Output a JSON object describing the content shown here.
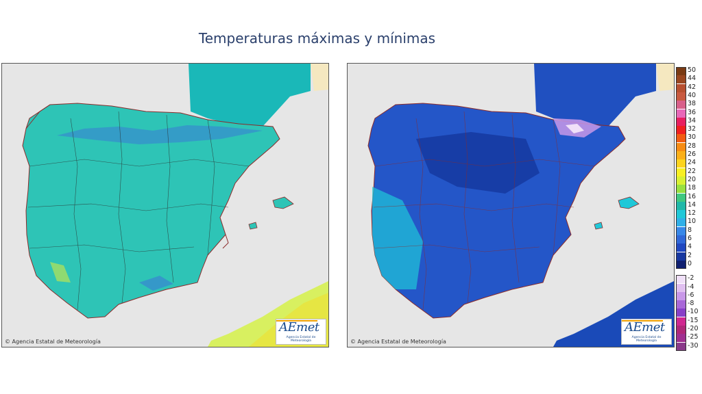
{
  "title": "Temperaturas máximas y mínimas",
  "panels": {
    "max": {
      "copyright": "© Agencia Estatal de Meteorología",
      "logo_text": "AEmet",
      "logo_subtext": "Agencia Estatal de Meteorología",
      "fill_color": "#2ec4b6",
      "hotspot_color": "#3a7bd5"
    },
    "min": {
      "copyright": "© Agencia Estatal de Meteorología",
      "logo_text": "AEmet",
      "logo_subtext": "Agencia Estatal de Meteorología",
      "fill_color": "#2456c8",
      "hotspot_color": "#0c2a8a"
    }
  },
  "colors": {
    "sea": "#e6e6e6",
    "france": "#1ab8b8",
    "france_min": "#2050c0",
    "africa": "#d8f060",
    "africa_min": "#1a4ab8",
    "borders": "#8b2a2a",
    "title": "#2a3f6b"
  },
  "legend": {
    "upper": [
      {
        "label": "50",
        "color": "#7a3b14"
      },
      {
        "label": "44",
        "color": "#9a4720"
      },
      {
        "label": "42",
        "color": "#b85030"
      },
      {
        "label": "40",
        "color": "#c85a40"
      },
      {
        "label": "38",
        "color": "#d8608a"
      },
      {
        "label": "36",
        "color": "#e868b8"
      },
      {
        "label": "34",
        "color": "#e82060"
      },
      {
        "label": "32",
        "color": "#f02020"
      },
      {
        "label": "30",
        "color": "#f25c12"
      },
      {
        "label": "28",
        "color": "#f78c14"
      },
      {
        "label": "26",
        "color": "#fbb01a"
      },
      {
        "label": "24",
        "color": "#fdd41e"
      },
      {
        "label": "22",
        "color": "#f8f022"
      },
      {
        "label": "20",
        "color": "#d8f032"
      },
      {
        "label": "18",
        "color": "#98e040"
      },
      {
        "label": "16",
        "color": "#40c880"
      },
      {
        "label": "14",
        "color": "#20b8a8"
      },
      {
        "label": "12",
        "color": "#20c8d8"
      },
      {
        "label": "10",
        "color": "#30b0e8"
      },
      {
        "label": "8",
        "color": "#3888e8"
      },
      {
        "label": "6",
        "color": "#3068d8"
      },
      {
        "label": "4",
        "color": "#2048c0"
      },
      {
        "label": "2",
        "color": "#1838a0"
      },
      {
        "label": "0",
        "color": "#102070"
      }
    ],
    "lower": [
      {
        "label": "-2",
        "color": "#f0e0f8"
      },
      {
        "label": "-4",
        "color": "#e0c0f0"
      },
      {
        "label": "-6",
        "color": "#c898e8"
      },
      {
        "label": "-8",
        "color": "#a868d8"
      },
      {
        "label": "-10",
        "color": "#8840c8"
      },
      {
        "label": "-15",
        "color": "#d02890"
      },
      {
        "label": "-20",
        "color": "#b02878"
      },
      {
        "label": "-25",
        "color": "#a03090"
      },
      {
        "label": "-30",
        "color": "#8a3a8a"
      }
    ]
  }
}
